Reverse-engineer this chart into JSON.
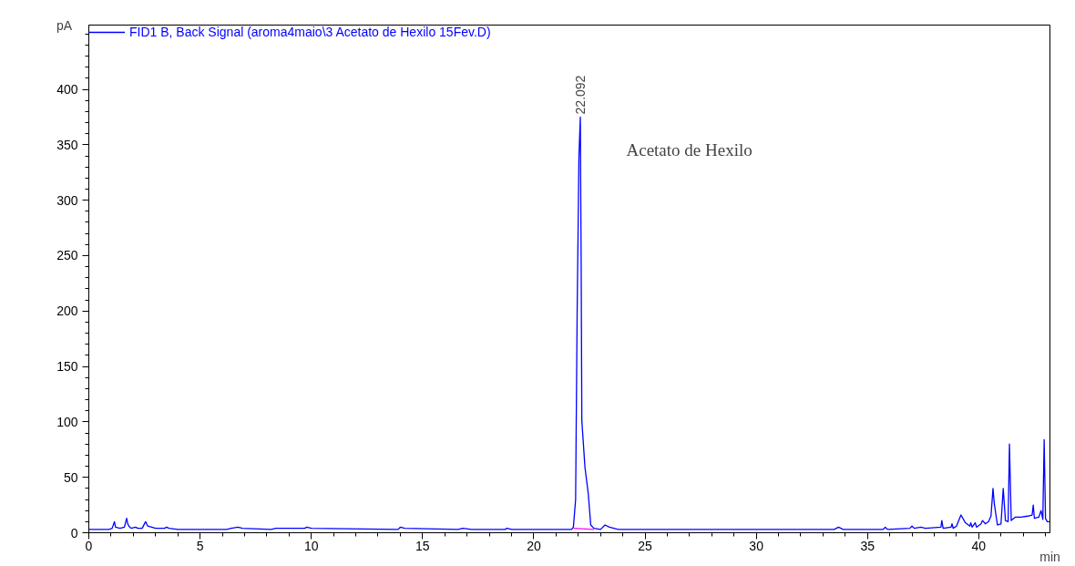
{
  "chart_data": {
    "type": "line",
    "xlabel": "min",
    "ylabel": "pA",
    "xlim": [
      0,
      43.2
    ],
    "ylim": [
      0,
      458
    ],
    "xticks": [
      0,
      5,
      10,
      15,
      20,
      25,
      30,
      35,
      40
    ],
    "yticks": [
      0,
      50,
      100,
      150,
      200,
      250,
      300,
      350,
      400
    ],
    "grid": false,
    "legend": "top left",
    "marker": "none",
    "line_style": "solid",
    "series": [
      {
        "name": "FID1 B, Back Signal (aroma4maio\\3 Acetato de Hexilo 15Fev.D)",
        "color": "#0000ff",
        "x": [
          0,
          0.9,
          1.05,
          1.15,
          1.2,
          1.4,
          1.6,
          1.7,
          1.75,
          1.8,
          1.9,
          2.1,
          2.2,
          2.4,
          2.55,
          2.65,
          3.0,
          3.4,
          3.5,
          3.6,
          4.0,
          5.5,
          6.2,
          6.4,
          6.7,
          6.9,
          8.2,
          8.4,
          9.7,
          9.8,
          10.0,
          13.9,
          14.0,
          14.2,
          16.6,
          16.8,
          17.2,
          18.7,
          18.8,
          19.0,
          21.7,
          21.78,
          21.88,
          21.95,
          22.03,
          22.092,
          22.13,
          22.16,
          22.3,
          22.45,
          22.56,
          22.7,
          23.0,
          23.2,
          23.4,
          23.8,
          33.5,
          33.7,
          33.9,
          35.7,
          35.8,
          35.9,
          36.9,
          37.0,
          37.1,
          37.4,
          37.6,
          38.3,
          38.34,
          38.4,
          38.75,
          38.8,
          38.85,
          39.0,
          39.2,
          39.4,
          39.6,
          39.64,
          39.7,
          39.84,
          39.9,
          40.1,
          40.17,
          40.3,
          40.44,
          40.55,
          40.64,
          40.7,
          40.84,
          41.0,
          41.1,
          41.2,
          41.32,
          41.38,
          41.46,
          41.64,
          41.9,
          42.2,
          42.4,
          42.45,
          42.5,
          42.7,
          42.8,
          42.88,
          42.94,
          43.0,
          43.08,
          43.2
        ],
        "values": [
          3,
          3,
          4,
          10,
          5,
          4,
          5,
          13,
          8,
          6,
          4,
          5,
          4,
          4,
          10,
          6,
          4,
          4,
          5,
          4,
          3,
          3,
          3,
          4,
          5,
          4,
          3,
          4,
          4,
          5,
          4,
          3,
          5,
          4,
          3,
          4,
          3,
          3,
          4,
          3,
          3,
          5,
          30,
          200,
          340,
          375,
          240,
          101,
          59,
          35,
          7,
          4,
          3,
          7,
          5,
          3,
          3,
          5,
          3,
          3,
          5,
          3,
          4,
          6,
          4,
          5,
          4,
          5,
          11,
          4,
          5,
          8,
          4,
          6,
          16,
          9,
          6,
          9,
          5,
          9,
          5,
          8,
          11,
          8,
          10,
          15,
          40,
          26,
          7,
          8,
          40,
          11,
          10,
          80,
          11,
          14,
          14,
          15,
          16,
          25,
          13,
          14,
          20,
          12,
          84,
          13,
          10,
          10
        ]
      },
      {
        "color": "#ff00ff",
        "x": [
          21.78,
          22.7
        ],
        "values": [
          4,
          3
        ]
      }
    ],
    "annotations": [
      {
        "text": "22.092",
        "x": 22.092,
        "y": 375
      },
      "Acetato de Hexilo"
    ]
  }
}
